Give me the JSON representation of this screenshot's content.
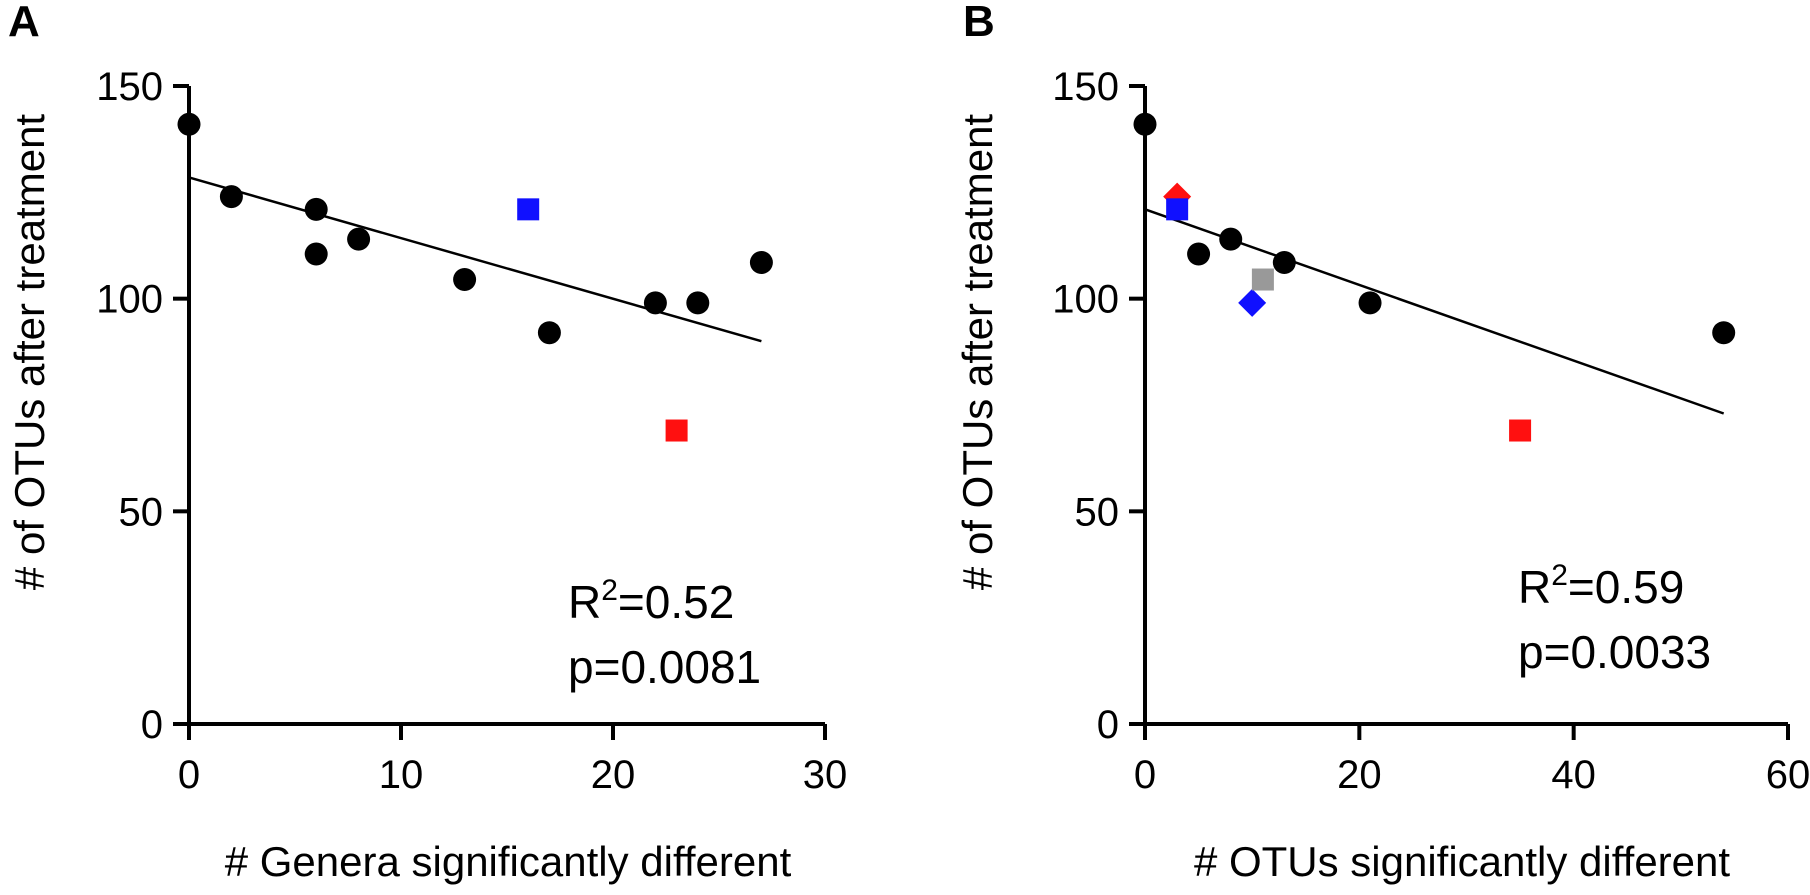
{
  "chart_data": [
    {
      "type": "scatter",
      "panel_label": "A",
      "xlabel": "# Genera significantly different",
      "ylabel": "# of OTUs after treatment",
      "xlim": [
        0,
        30
      ],
      "ylim": [
        0,
        150
      ],
      "xticks": [
        "0",
        "10",
        "20",
        "30"
      ],
      "yticks": [
        "0",
        "50",
        "100",
        "150"
      ],
      "grid": false,
      "points": [
        {
          "x": 0,
          "y": 141,
          "shape": "circle",
          "color": "#000000"
        },
        {
          "x": 2,
          "y": 124,
          "shape": "circle",
          "color": "#000000"
        },
        {
          "x": 6,
          "y": 121,
          "shape": "circle",
          "color": "#000000"
        },
        {
          "x": 6,
          "y": 110.5,
          "shape": "circle",
          "color": "#000000"
        },
        {
          "x": 8,
          "y": 114,
          "shape": "circle",
          "color": "#000000"
        },
        {
          "x": 13,
          "y": 104.5,
          "shape": "circle",
          "color": "#000000"
        },
        {
          "x": 16,
          "y": 121,
          "shape": "square",
          "color": "#1010ff"
        },
        {
          "x": 17,
          "y": 92,
          "shape": "circle",
          "color": "#000000"
        },
        {
          "x": 22,
          "y": 99,
          "shape": "circle",
          "color": "#000000"
        },
        {
          "x": 23,
          "y": 69,
          "shape": "square",
          "color": "#ff1010"
        },
        {
          "x": 24,
          "y": 99,
          "shape": "circle",
          "color": "#000000"
        },
        {
          "x": 27,
          "y": 108.5,
          "shape": "circle",
          "color": "#000000"
        }
      ],
      "regression": {
        "x": [
          0,
          27
        ],
        "y": [
          128.5,
          90
        ]
      },
      "r2_label": "R",
      "r2_sup": "2",
      "r2_value": "=0.52",
      "p_text": "p=0.0081"
    },
    {
      "type": "scatter",
      "panel_label": "B",
      "xlabel": "# OTUs significantly different",
      "ylabel": "# of OTUs after treatment",
      "xlim": [
        0,
        60
      ],
      "ylim": [
        0,
        150
      ],
      "xticks": [
        "0",
        "20",
        "40",
        "60"
      ],
      "yticks": [
        "0",
        "50",
        "100",
        "150"
      ],
      "grid": false,
      "points": [
        {
          "x": 0,
          "y": 141,
          "shape": "circle",
          "color": "#000000"
        },
        {
          "x": 3,
          "y": 124,
          "shape": "diamond",
          "color": "#ff1010"
        },
        {
          "x": 3,
          "y": 121,
          "shape": "square",
          "color": "#1010ff"
        },
        {
          "x": 5,
          "y": 110.5,
          "shape": "circle",
          "color": "#000000"
        },
        {
          "x": 8,
          "y": 114,
          "shape": "circle",
          "color": "#000000"
        },
        {
          "x": 10,
          "y": 99,
          "shape": "diamond",
          "color": "#1010ff"
        },
        {
          "x": 11,
          "y": 104.5,
          "shape": "square",
          "color": "#999999"
        },
        {
          "x": 13,
          "y": 108.5,
          "shape": "circle",
          "color": "#000000"
        },
        {
          "x": 21,
          "y": 99,
          "shape": "circle",
          "color": "#000000"
        },
        {
          "x": 35,
          "y": 69,
          "shape": "square",
          "color": "#ff1010"
        },
        {
          "x": 54,
          "y": 92,
          "shape": "circle",
          "color": "#000000"
        }
      ],
      "regression": {
        "x": [
          0,
          54
        ],
        "y": [
          121,
          73
        ]
      },
      "r2_label": "R",
      "r2_sup": "2",
      "r2_value": "=0.59",
      "p_text": "p=0.0033"
    }
  ]
}
